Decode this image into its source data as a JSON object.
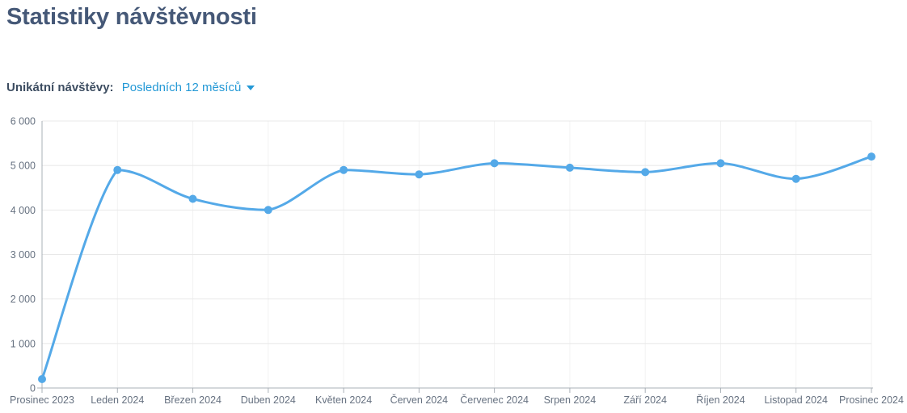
{
  "page": {
    "title": "Statistiky návštěvnosti",
    "background": "#ffffff",
    "title_color": "#455877"
  },
  "filter": {
    "label": "Unikátní návštěvy:",
    "dropdown_label": "Posledních 12 měsíců",
    "dropdown_icon": "caret-down-icon",
    "label_color": "#3d4d61",
    "link_color": "#2499d6"
  },
  "chart_data": {
    "type": "line",
    "title": "Statistiky návštěvnosti",
    "xlabel": "",
    "ylabel": "",
    "categories": [
      "Prosinec 2023",
      "Leden 2024",
      "Březen 2024",
      "Duben 2024",
      "Květen 2024",
      "Červen 2024",
      "Červenec 2024",
      "Srpen 2024",
      "Září 2024",
      "Říjen 2024",
      "Listopad 2024",
      "Prosinec 2024"
    ],
    "values": [
      200,
      4900,
      4250,
      4000,
      4900,
      4800,
      5050,
      4950,
      4850,
      5050,
      4700,
      5200
    ],
    "ylim": [
      0,
      6000
    ],
    "yticks": [
      0,
      1000,
      2000,
      3000,
      4000,
      5000,
      6000
    ],
    "ytick_labels": [
      "0",
      "1 000",
      "2 000",
      "3 000",
      "4 000",
      "5 000",
      "6 000"
    ],
    "grid": true,
    "legend": "none",
    "smooth": true,
    "marker": "circle",
    "marker_radius": 5,
    "line_width": 3,
    "line_color": "#54a9e8",
    "colors": {
      "hgrid": "#e8e8e8",
      "vgrid": "#f2f2f2",
      "axis": "#a9b0b7",
      "label": "#667180"
    }
  }
}
